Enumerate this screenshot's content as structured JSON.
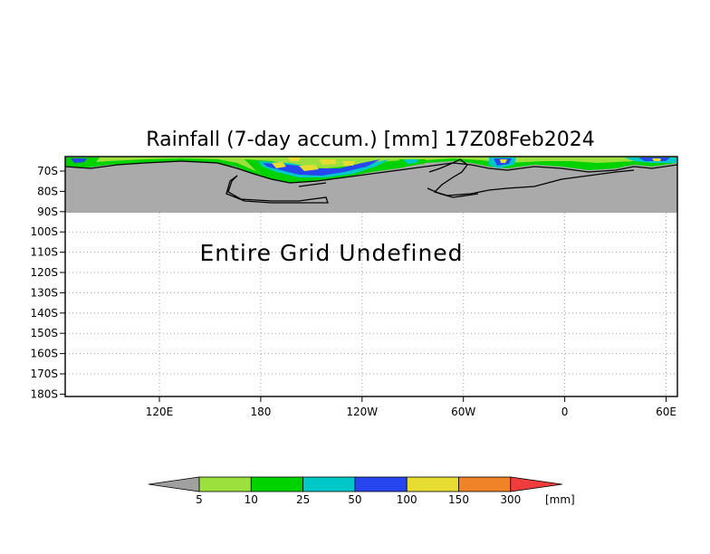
{
  "title": "Rainfall (7-day accum.) [mm] 17Z08Feb2024",
  "message": "Entire Grid Undefined",
  "axes": {
    "y_ticks": [
      "70S",
      "80S",
      "90S",
      "100S",
      "110S",
      "120S",
      "130S",
      "140S",
      "150S",
      "160S",
      "170S",
      "180S"
    ],
    "x_ticks": [
      "120E",
      "180",
      "120W",
      "60W",
      "0",
      "60E"
    ]
  },
  "legend": {
    "unit": "[mm]",
    "bins": [
      {
        "label": "5",
        "color": "#9be03c"
      },
      {
        "label": "10",
        "color": "#00d200"
      },
      {
        "label": "25",
        "color": "#00c8c8"
      },
      {
        "label": "50",
        "color": "#2846f0"
      },
      {
        "label": "100",
        "color": "#e6dc32"
      },
      {
        "label": "150",
        "color": "#f08228"
      },
      {
        "label": "300",
        "color": "#f03c3c"
      }
    ],
    "under_color": "#a0a0a0"
  },
  "colors": {
    "land": "#aaaaaa",
    "frame": "#000000",
    "grid": "#a0a0a0"
  }
}
